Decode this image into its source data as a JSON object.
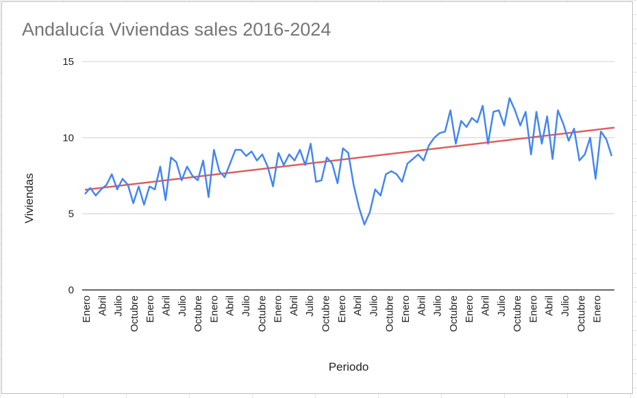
{
  "chart_data": {
    "type": "line",
    "title": "Andalucía Viviendas sales 2016-2024",
    "xlabel": "Periodo",
    "ylabel": "Viviendas",
    "ylim": [
      0,
      15
    ],
    "yticks": [
      0,
      5,
      10,
      15
    ],
    "grid": true,
    "legend": "none",
    "x_tick_labels": [
      "Enero",
      "Abril",
      "Julio",
      "Octubre",
      "Enero",
      "Abril",
      "Julio",
      "Octubre",
      "Enero",
      "Abril",
      "Julio",
      "Octubre",
      "Enero",
      "Abril",
      "Julio",
      "Octubre",
      "Enero",
      "Abril",
      "Julio",
      "Octubre",
      "Enero",
      "Abril",
      "Julio",
      "Octubre",
      "Enero",
      "Abril",
      "Julio",
      "Octubre",
      "Enero",
      "Abril",
      "Julio",
      "Octubre",
      "Enero"
    ],
    "series": [
      {
        "color": "#4285f4",
        "values": [
          6.3,
          6.7,
          6.2,
          6.6,
          6.9,
          7.6,
          6.6,
          7.3,
          6.9,
          5.7,
          6.8,
          5.6,
          6.8,
          6.6,
          8.1,
          5.9,
          8.7,
          8.4,
          7.2,
          8.1,
          7.5,
          7.2,
          8.5,
          6.1,
          9.2,
          7.8,
          7.4,
          8.3,
          9.2,
          9.2,
          8.8,
          9.1,
          8.5,
          8.9,
          8.1,
          6.8,
          9.0,
          8.2,
          8.9,
          8.5,
          9.2,
          8.2,
          9.6,
          7.1,
          7.2,
          8.7,
          8.3,
          7.0,
          9.3,
          9.0,
          6.9,
          5.4,
          4.3,
          5.1,
          6.6,
          6.2,
          7.6,
          7.8,
          7.6,
          7.1,
          8.3,
          8.6,
          8.9,
          8.5,
          9.5,
          10.0,
          10.3,
          10.4,
          11.8,
          9.6,
          11.1,
          10.7,
          11.3,
          11.0,
          12.1,
          9.6,
          11.7,
          11.8,
          10.8,
          12.6,
          11.8,
          10.8,
          11.7,
          8.9,
          11.7,
          9.6,
          11.4,
          8.6,
          11.8,
          10.9,
          9.8,
          10.6,
          8.5,
          8.9,
          10.0,
          7.3,
          10.4,
          9.9,
          8.8
        ]
      },
      {
        "color": "#e05c5c",
        "trendline": true,
        "values_start_end": [
          6.58,
          10.66
        ]
      }
    ]
  }
}
